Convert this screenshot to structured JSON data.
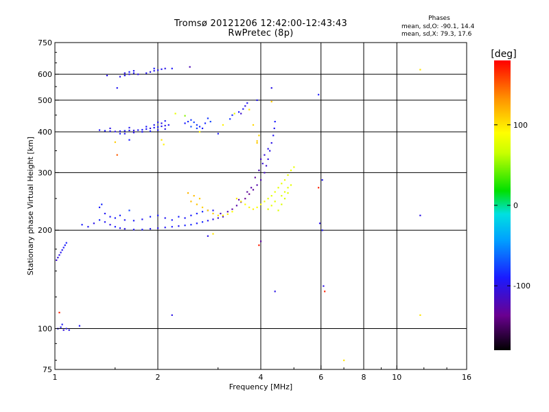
{
  "header": {
    "title_line1": "Tromsø 20121206 12:42:00-12:43:43",
    "title_line2": "RwPretec (8p)",
    "phases_heading": "Phases",
    "phases_o": "mean, sd,O: -90.1, 14.4",
    "phases_x": "mean, sd,X:  79.3, 17.6"
  },
  "chart_data": {
    "type": "scatter",
    "title": "Tromsø 20121206 12:42:00-12:43:43",
    "subtitle": "RwPretec (8p)",
    "xlabel": "Frequency [MHz]",
    "ylabel": "Stationary phase Virtual Height [km]",
    "x_scale": "log",
    "y_scale": "log",
    "xlim": [
      1,
      16
    ],
    "ylim": [
      75,
      750
    ],
    "x_ticks": [
      1,
      2,
      4,
      6,
      8,
      10,
      16
    ],
    "x_tick_labels": [
      "1",
      "2",
      "4",
      "6",
      "8",
      "10",
      "16"
    ],
    "y_ticks": [
      75,
      100,
      200,
      300,
      400,
      500,
      600,
      750
    ],
    "y_tick_labels": [
      "75",
      "100",
      "200",
      "300",
      "400",
      "500",
      "600",
      "750"
    ],
    "grid": true,
    "colorbar": {
      "label": "[deg]",
      "range": [
        -180,
        180
      ],
      "ticks": [
        -100,
        0,
        100
      ],
      "tick_labels": [
        "-100",
        "0",
        "100"
      ]
    },
    "series": [
      {
        "values": [
          [
            1.01,
            162,
            -110
          ],
          [
            1.02,
            165,
            -105
          ],
          [
            1.03,
            168,
            -100
          ],
          [
            1.04,
            171,
            -98
          ],
          [
            1.05,
            174,
            -95
          ],
          [
            1.06,
            177,
            -92
          ],
          [
            1.07,
            180,
            -90
          ],
          [
            1.08,
            183,
            -88
          ],
          [
            1.02,
            100,
            -100
          ],
          [
            1.04,
            101,
            -95
          ],
          [
            1.06,
            99,
            -105
          ],
          [
            1.08,
            100,
            -100
          ],
          [
            1.1,
            99,
            -98
          ],
          [
            1.05,
            103,
            -92
          ],
          [
            1.18,
            102,
            -95
          ],
          [
            1.03,
            112,
            170
          ],
          [
            1.2,
            208,
            -90
          ],
          [
            1.25,
            205,
            -95
          ],
          [
            1.3,
            210,
            -100
          ],
          [
            1.35,
            215,
            -85
          ],
          [
            1.4,
            212,
            -95
          ],
          [
            1.45,
            208,
            -100
          ],
          [
            1.5,
            205,
            -90
          ],
          [
            1.55,
            203,
            -95
          ],
          [
            1.6,
            202,
            -100
          ],
          [
            1.7,
            201,
            -95
          ],
          [
            1.8,
            201,
            -90
          ],
          [
            1.9,
            202,
            -95
          ],
          [
            2.0,
            203,
            -100
          ],
          [
            2.1,
            204,
            -95
          ],
          [
            2.2,
            205,
            -90
          ],
          [
            2.3,
            206,
            -95
          ],
          [
            2.4,
            207,
            -88
          ],
          [
            2.5,
            208,
            -85
          ],
          [
            2.6,
            210,
            -90
          ],
          [
            2.7,
            212,
            -85
          ],
          [
            2.8,
            214,
            -95
          ],
          [
            2.9,
            216,
            -100
          ],
          [
            3.0,
            218,
            -110
          ],
          [
            3.1,
            220,
            -115
          ],
          [
            1.35,
            235,
            -90
          ],
          [
            1.37,
            240,
            -85
          ],
          [
            1.4,
            225,
            -95
          ],
          [
            1.45,
            220,
            -92
          ],
          [
            1.5,
            218,
            -90
          ],
          [
            1.55,
            222,
            -88
          ],
          [
            1.6,
            215,
            -95
          ],
          [
            1.7,
            214,
            -92
          ],
          [
            1.8,
            216,
            -95
          ],
          [
            1.9,
            220,
            -88
          ],
          [
            2.0,
            222,
            -90
          ],
          [
            2.1,
            218,
            -95
          ],
          [
            2.2,
            215,
            -90
          ],
          [
            2.3,
            220,
            -88
          ],
          [
            2.4,
            218,
            -92
          ],
          [
            2.5,
            222,
            -90
          ],
          [
            2.6,
            225,
            -88
          ],
          [
            2.7,
            228,
            -85
          ],
          [
            2.8,
            230,
            -90
          ],
          [
            2.9,
            230,
            -95
          ],
          [
            1.65,
            230,
            -75
          ],
          [
            3.05,
            225,
            -120
          ],
          [
            3.2,
            228,
            -125
          ],
          [
            3.3,
            232,
            -130
          ],
          [
            3.4,
            238,
            -125
          ],
          [
            3.5,
            244,
            -130
          ],
          [
            3.6,
            250,
            -135
          ],
          [
            3.7,
            258,
            -140
          ],
          [
            3.8,
            266,
            -130
          ],
          [
            3.9,
            275,
            -125
          ],
          [
            4.0,
            285,
            -120
          ],
          [
            4.1,
            300,
            -115
          ],
          [
            4.15,
            315,
            -110
          ],
          [
            4.2,
            330,
            -105
          ],
          [
            4.25,
            350,
            -100
          ],
          [
            4.3,
            370,
            -100
          ],
          [
            4.35,
            390,
            -95
          ],
          [
            4.38,
            410,
            -95
          ],
          [
            4.4,
            430,
            -90
          ],
          [
            4.0,
            330,
            -115
          ],
          [
            4.05,
            320,
            -110
          ],
          [
            4.1,
            340,
            -105
          ],
          [
            4.2,
            355,
            -100
          ],
          [
            3.95,
            305,
            -120
          ],
          [
            3.85,
            290,
            -130
          ],
          [
            3.75,
            270,
            -125
          ],
          [
            3.65,
            262,
            -130
          ],
          [
            3.45,
            248,
            -128
          ],
          [
            4.3,
            545,
            -100
          ],
          [
            3.9,
            500,
            -95
          ],
          [
            4.0,
            185,
            -130
          ],
          [
            3.95,
            180,
            170
          ],
          [
            4.4,
            130,
            -100
          ],
          [
            3.4,
            250,
            100
          ],
          [
            3.5,
            245,
            95
          ],
          [
            3.6,
            240,
            90
          ],
          [
            3.7,
            235,
            92
          ],
          [
            3.8,
            232,
            95
          ],
          [
            3.9,
            235,
            90
          ],
          [
            4.0,
            240,
            88
          ],
          [
            4.1,
            245,
            85
          ],
          [
            4.2,
            250,
            80
          ],
          [
            4.3,
            255,
            78
          ],
          [
            4.4,
            262,
            80
          ],
          [
            4.5,
            270,
            78
          ],
          [
            4.6,
            278,
            80
          ],
          [
            4.7,
            285,
            82
          ],
          [
            4.8,
            295,
            80
          ],
          [
            4.9,
            305,
            82
          ],
          [
            5.0,
            312,
            80
          ],
          [
            3.3,
            228,
            90
          ],
          [
            3.2,
            224,
            95
          ],
          [
            3.1,
            222,
            98
          ],
          [
            3.0,
            222,
            100
          ],
          [
            2.9,
            225,
            110
          ],
          [
            2.8,
            230,
            110
          ],
          [
            2.7,
            235,
            108
          ],
          [
            2.6,
            240,
            112
          ],
          [
            2.5,
            245,
            115
          ],
          [
            2.45,
            260,
            118
          ],
          [
            2.55,
            255,
            115
          ],
          [
            2.65,
            250,
            110
          ],
          [
            4.5,
            230,
            75
          ],
          [
            4.6,
            240,
            75
          ],
          [
            4.7,
            250,
            72
          ],
          [
            4.8,
            260,
            75
          ],
          [
            4.9,
            275,
            78
          ],
          [
            4.2,
            232,
            78
          ],
          [
            4.3,
            238,
            80
          ],
          [
            4.4,
            245,
            78
          ],
          [
            4.6,
            255,
            76
          ],
          [
            4.7,
            262,
            76
          ],
          [
            4.8,
            270,
            78
          ],
          [
            3.9,
            375,
            110
          ],
          [
            3.95,
            390,
            105
          ],
          [
            4.3,
            495,
            110
          ],
          [
            3.8,
            420,
            105
          ],
          [
            3.9,
            370,
            110
          ],
          [
            1.35,
            405,
            -95
          ],
          [
            1.4,
            403,
            -90
          ],
          [
            1.45,
            402,
            -95
          ],
          [
            1.5,
            401,
            -100
          ],
          [
            1.55,
            402,
            -95
          ],
          [
            1.6,
            403,
            -90
          ],
          [
            1.65,
            404,
            -95
          ],
          [
            1.7,
            404,
            -100
          ],
          [
            1.75,
            405,
            -95
          ],
          [
            1.8,
            406,
            -90
          ],
          [
            1.85,
            408,
            -95
          ],
          [
            1.9,
            410,
            -100
          ],
          [
            1.95,
            412,
            -95
          ],
          [
            2.0,
            414,
            -90
          ],
          [
            2.05,
            416,
            -95
          ],
          [
            2.1,
            418,
            -100
          ],
          [
            2.15,
            420,
            -95
          ],
          [
            1.6,
            395,
            -95
          ],
          [
            1.7,
            398,
            -100
          ],
          [
            1.8,
            400,
            -95
          ],
          [
            1.9,
            402,
            -90
          ],
          [
            2.0,
            405,
            -95
          ],
          [
            2.1,
            408,
            -100
          ],
          [
            1.55,
            395,
            -90
          ],
          [
            1.45,
            410,
            -100
          ],
          [
            1.65,
            412,
            -95
          ],
          [
            1.85,
            415,
            -90
          ],
          [
            1.95,
            420,
            -95
          ],
          [
            2.05,
            425,
            -100
          ],
          [
            2.0,
            428,
            -95
          ],
          [
            2.1,
            432,
            -92
          ],
          [
            1.5,
            372,
            110
          ],
          [
            1.52,
            340,
            150
          ],
          [
            1.65,
            378,
            -90
          ],
          [
            2.05,
            378,
            100
          ],
          [
            2.08,
            366,
            95
          ],
          [
            2.4,
            425,
            -90
          ],
          [
            2.45,
            430,
            -85
          ],
          [
            2.5,
            435,
            -80
          ],
          [
            2.55,
            428,
            -75
          ],
          [
            2.6,
            420,
            -80
          ],
          [
            2.65,
            415,
            -85
          ],
          [
            2.7,
            410,
            -90
          ],
          [
            2.75,
            425,
            -85
          ],
          [
            2.8,
            440,
            -80
          ],
          [
            2.85,
            430,
            -75
          ],
          [
            2.5,
            415,
            -70
          ],
          [
            2.6,
            410,
            -75
          ],
          [
            2.25,
            455,
            80
          ],
          [
            2.4,
            448,
            50
          ],
          [
            2.65,
            400,
            95
          ],
          [
            3.0,
            395,
            -90
          ],
          [
            3.1,
            420,
            95
          ],
          [
            3.25,
            438,
            -80
          ],
          [
            3.3,
            450,
            -85
          ],
          [
            3.45,
            460,
            -90
          ],
          [
            3.55,
            470,
            -95
          ],
          [
            3.6,
            480,
            -100
          ],
          [
            3.5,
            455,
            -110
          ],
          [
            3.65,
            490,
            -95
          ],
          [
            3.7,
            468,
            100
          ],
          [
            3.35,
            455,
            80
          ],
          [
            1.55,
            590,
            -100
          ],
          [
            1.6,
            595,
            -95
          ],
          [
            1.65,
            600,
            -100
          ],
          [
            1.7,
            605,
            -95
          ],
          [
            1.75,
            600,
            -100
          ],
          [
            1.65,
            610,
            -90
          ],
          [
            1.7,
            615,
            -95
          ],
          [
            1.6,
            605,
            -100
          ],
          [
            1.85,
            605,
            -95
          ],
          [
            1.9,
            610,
            -100
          ],
          [
            1.95,
            615,
            -95
          ],
          [
            2.0,
            618,
            -100
          ],
          [
            2.05,
            622,
            -95
          ],
          [
            2.1,
            625,
            -100
          ],
          [
            2.2,
            625,
            -92
          ],
          [
            1.95,
            625,
            -90
          ],
          [
            1.42,
            595,
            -100
          ],
          [
            1.52,
            545,
            -95
          ],
          [
            2.48,
            632,
            -120
          ],
          [
            5.9,
            520,
            -90
          ],
          [
            6.05,
            285,
            -95
          ],
          [
            5.95,
            210,
            -100
          ],
          [
            6.05,
            200,
            -95
          ],
          [
            6.1,
            135,
            -100
          ],
          [
            5.9,
            270,
            170
          ],
          [
            6.15,
            130,
            170
          ],
          [
            7.0,
            80,
            100
          ],
          [
            11.7,
            620,
            100
          ],
          [
            11.7,
            222,
            -100
          ],
          [
            11.7,
            110,
            100
          ],
          [
            2.2,
            110,
            -100
          ],
          [
            2.8,
            192,
            -100
          ],
          [
            2.9,
            195,
            100
          ]
        ]
      }
    ]
  }
}
